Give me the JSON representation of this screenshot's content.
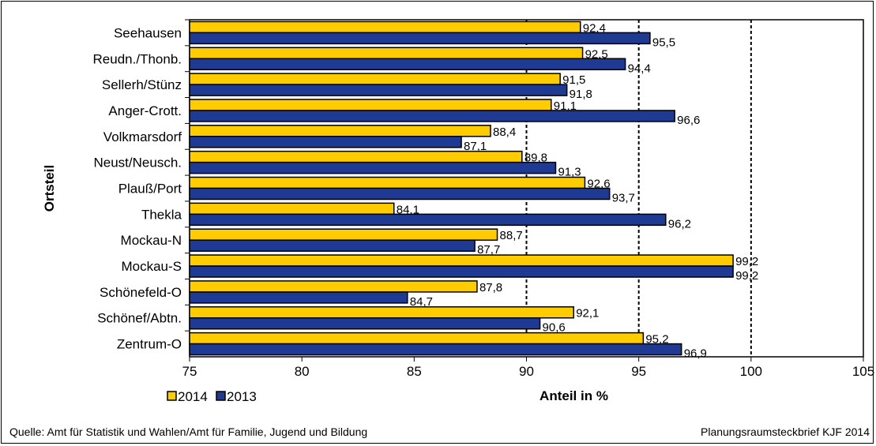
{
  "chart_data": {
    "type": "bar",
    "orientation": "horizontal",
    "title": "",
    "xlabel": "Anteil in %",
    "ylabel": "Ortsteil",
    "xlim": [
      75,
      105
    ],
    "xticks": [
      75,
      80,
      85,
      90,
      95,
      100,
      105
    ],
    "grid": "dashed vertical lines at 90, 95, 100",
    "categories": [
      "Seehausen",
      "Reudn./Thonb.",
      "Sellerh/Stünz",
      "Anger-Crott.",
      "Volkmarsdorf",
      "Neust/Neusch.",
      "Plauß/Port",
      "Thekla",
      "Mockau-N",
      "Mockau-S",
      "Schönefeld-O",
      "Schönef/Abtn.",
      "Zentrum-O"
    ],
    "series": [
      {
        "name": "2014",
        "color": "#FFCC00",
        "values": [
          92.4,
          92.5,
          91.5,
          91.1,
          88.4,
          89.8,
          92.6,
          84.1,
          88.7,
          99.2,
          87.8,
          92.1,
          95.2
        ],
        "labels": [
          "92,4",
          "92,5",
          "91,5",
          "91,1",
          "88,4",
          "89,8",
          "92,6",
          "84,1",
          "88,7",
          "99,2",
          "87,8",
          "92,1",
          "95,2"
        ]
      },
      {
        "name": "2013",
        "color": "#1F3A93",
        "values": [
          95.5,
          94.4,
          91.8,
          96.6,
          87.1,
          91.3,
          93.7,
          96.2,
          87.7,
          99.2,
          84.7,
          90.6,
          96.9
        ],
        "labels": [
          "95,5",
          "94,4",
          "91,8",
          "96,6",
          "87,1",
          "91,3",
          "93,7",
          "96,2",
          "87,7",
          "99,2",
          "84,7",
          "90,6",
          "96,9"
        ]
      }
    ],
    "legend": "bottom-left"
  },
  "footer": {
    "source": "Quelle: Amt für Statistik und Wahlen/Amt für Familie, Jugend und Bildung",
    "credit": "Planungsraumsteckbrief KJF 2014"
  }
}
